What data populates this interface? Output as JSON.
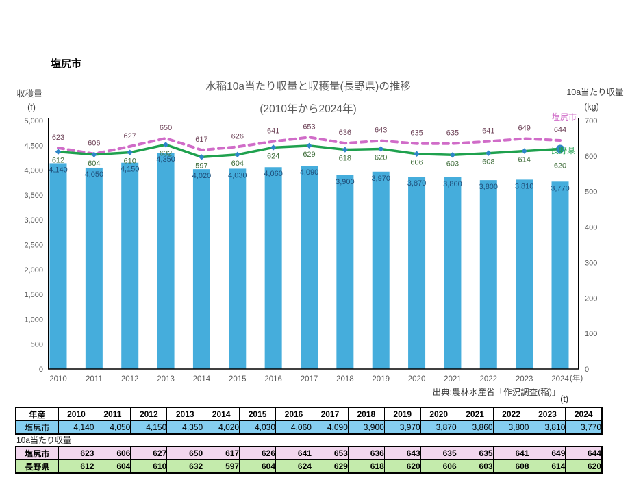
{
  "page": {
    "region_title": "塩尻市",
    "source": "出典:農林水産省「作況調査(稲)」",
    "table_unit_label": "(t)",
    "yield_section_label": "10a当たり収量"
  },
  "chart_data": {
    "type": "bar+line",
    "title": "水稲10a当たり収量と収穫量(長野県)の推移",
    "subtitle": "(2010年から2024年)",
    "x": [
      "2010",
      "2011",
      "2012",
      "2013",
      "2014",
      "2015",
      "2016",
      "2017",
      "2018",
      "2019",
      "2020",
      "2021",
      "2022",
      "2023",
      "2024"
    ],
    "x_axis_suffix": "(年)",
    "grid": false,
    "legend_position": "series-end-labels",
    "left_axis": {
      "label": "収穫量",
      "unit": "(t)",
      "min": 0,
      "max": 5000,
      "step": 500
    },
    "right_axis": {
      "label": "10a当たり収量",
      "unit": "(kg)",
      "min": 0,
      "max": 700,
      "step": 100
    },
    "bar_series": {
      "name": "塩尻市",
      "axis": "left",
      "color": "#45ADDC",
      "label_color": "#1F4E79",
      "values": [
        4140,
        4050,
        4150,
        4350,
        4020,
        4030,
        4060,
        4090,
        3900,
        3970,
        3870,
        3860,
        3800,
        3810,
        3770
      ]
    },
    "line_series": [
      {
        "name": "塩尻市",
        "axis": "right",
        "style": "dashed",
        "color": "#D06CC8",
        "label_color": "#6E4358",
        "values": [
          623,
          606,
          627,
          650,
          617,
          626,
          641,
          653,
          636,
          643,
          635,
          635,
          641,
          649,
          644
        ]
      },
      {
        "name": "長野県",
        "axis": "right",
        "style": "solid",
        "color": "#1FA14E",
        "marker_color": "#2E86C8",
        "label_color": "#3F6D3A",
        "values": [
          612,
          604,
          610,
          632,
          597,
          604,
          624,
          629,
          618,
          620,
          606,
          603,
          608,
          614,
          620
        ]
      }
    ]
  },
  "tables": {
    "harvest": {
      "header": [
        "年産",
        "2010",
        "2011",
        "2012",
        "2013",
        "2014",
        "2015",
        "2016",
        "2017",
        "2018",
        "2019",
        "2020",
        "2021",
        "2022",
        "2023",
        "2024"
      ],
      "rows": [
        {
          "label": "塩尻市",
          "bg": "#85CEF0",
          "bold": false,
          "values": [
            "4,140",
            "4,050",
            "4,150",
            "4,350",
            "4,020",
            "4,030",
            "4,060",
            "4,090",
            "3,900",
            "3,970",
            "3,870",
            "3,860",
            "3,800",
            "3,810",
            "3,770"
          ]
        }
      ]
    },
    "yield": {
      "rows": [
        {
          "label": "塩尻市",
          "bg": "#F2D7EE",
          "bold": true,
          "values": [
            "623",
            "606",
            "627",
            "650",
            "617",
            "626",
            "641",
            "653",
            "636",
            "643",
            "635",
            "635",
            "641",
            "649",
            "644"
          ]
        },
        {
          "label": "長野県",
          "bg": "#C4EBAC",
          "bold": true,
          "values": [
            "612",
            "604",
            "610",
            "632",
            "597",
            "604",
            "624",
            "629",
            "618",
            "620",
            "606",
            "603",
            "608",
            "614",
            "620"
          ]
        }
      ]
    }
  }
}
